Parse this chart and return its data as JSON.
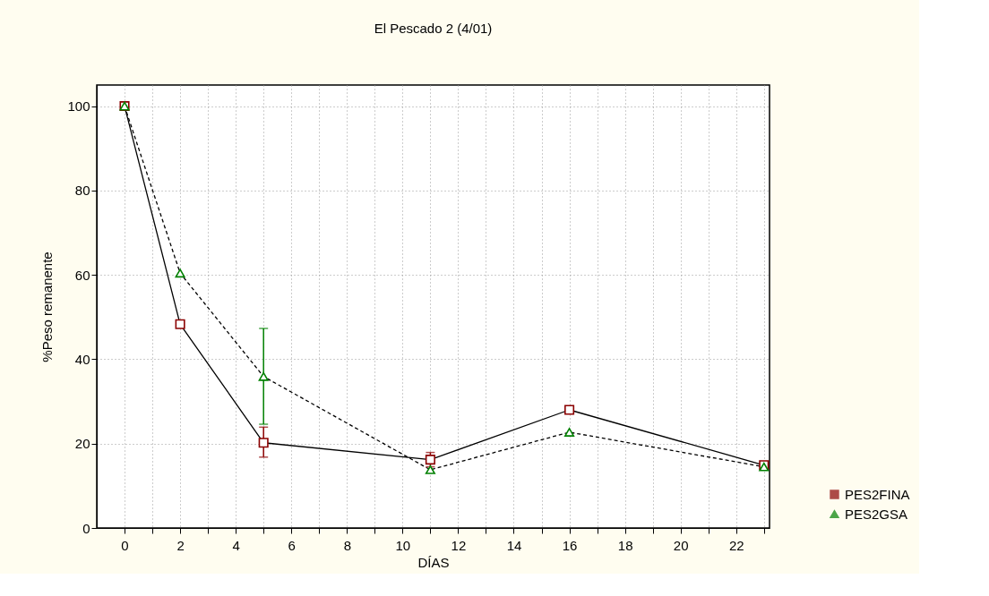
{
  "chart_data": {
    "type": "line",
    "title": "El Pescado 2 (4/01)",
    "xlabel": "DÍAS",
    "ylabel": "%Peso remanente",
    "x": [
      0,
      2,
      5,
      11,
      16,
      23
    ],
    "series": [
      {
        "name": "PES2FINA",
        "color": "#8b0000",
        "marker": "square",
        "line_style": "solid",
        "values": [
          100,
          48.3,
          20.2,
          16.2,
          28.0,
          14.9
        ],
        "errors": [
          null,
          null,
          [
            16.8,
            23.9
          ],
          1.7,
          null,
          null
        ]
      },
      {
        "name": "PES2GSA",
        "color": "#008000",
        "marker": "triangle",
        "line_style": "dashed",
        "values": [
          100,
          60.4,
          35.9,
          13.8,
          22.7,
          14.5
        ],
        "errors": [
          null,
          null,
          [
            24.6,
            47.3
          ],
          null,
          null,
          null
        ]
      }
    ],
    "xlim": [
      -1,
      23.2
    ],
    "xticks": [
      0,
      {
        "value": 1,
        "label": null
      },
      2,
      {
        "value": 3,
        "label": null
      },
      4,
      {
        "value": 5,
        "label": null
      },
      6,
      {
        "value": 7,
        "label": null
      },
      8,
      {
        "value": 9,
        "label": null
      },
      10,
      {
        "value": 11,
        "label": null
      },
      12,
      {
        "value": 13,
        "label": null
      },
      14,
      {
        "value": 15,
        "label": null
      },
      16,
      {
        "value": 17,
        "label": null
      },
      18,
      {
        "value": 19,
        "label": null
      },
      20,
      {
        "value": 21,
        "label": null
      },
      22,
      {
        "value": 23,
        "label": null
      }
    ],
    "ylim": [
      0,
      105
    ],
    "yticks": [
      0,
      20,
      40,
      60,
      80,
      100
    ],
    "grid": true,
    "legend": "bottom right"
  }
}
